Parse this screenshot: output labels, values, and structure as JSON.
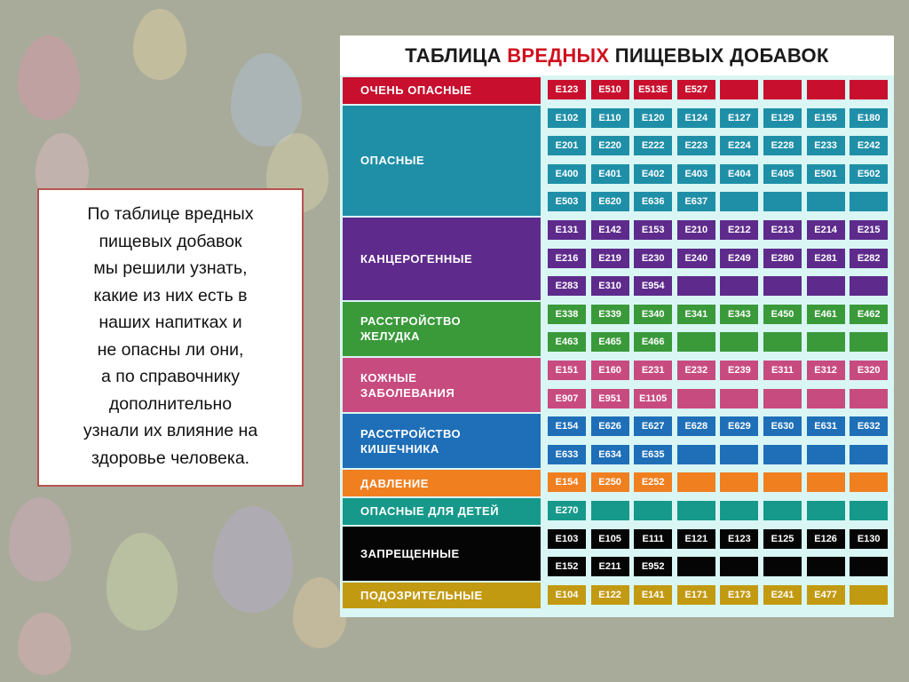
{
  "slide_text": "По таблице вредных\n пищевых добавок\nмы решили узнать,\nкакие из них есть в\nнаших напитках и\nне опасны ли они,\nа по справочнику\nдополнительно\nузнали их влияние на\nздоровье человека.",
  "table": {
    "title_part1": "ТАБЛИЦА ",
    "title_part2": "ВРЕДНЫХ",
    "title_part3": " ПИЩЕВЫХ ДОБАВОК",
    "groups": [
      {
        "label": "ОЧЕНЬ ОПАСНЫЕ",
        "color": "#c8102e",
        "rows": [
          [
            "E123",
            "E510",
            "E513E",
            "E527",
            "",
            "",
            "",
            ""
          ]
        ]
      },
      {
        "label": "ОПАСНЫЕ",
        "color": "#1f8fa8",
        "rows": [
          [
            "E102",
            "E110",
            "E120",
            "E124",
            "E127",
            "E129",
            "E155",
            "E180"
          ],
          [
            "E201",
            "E220",
            "E222",
            "E223",
            "E224",
            "E228",
            "E233",
            "E242"
          ],
          [
            "E400",
            "E401",
            "E402",
            "E403",
            "E404",
            "E405",
            "E501",
            "E502"
          ],
          [
            "E503",
            "E620",
            "E636",
            "E637",
            "",
            "",
            "",
            ""
          ]
        ]
      },
      {
        "label": "КАНЦЕРОГЕННЫЕ",
        "color": "#5e2b8c",
        "rows": [
          [
            "E131",
            "E142",
            "E153",
            "E210",
            "E212",
            "E213",
            "E214",
            "E215"
          ],
          [
            "E216",
            "E219",
            "E230",
            "E240",
            "E249",
            "E280",
            "E281",
            "E282"
          ],
          [
            "E283",
            "E310",
            "E954",
            "",
            "",
            "",
            "",
            ""
          ]
        ]
      },
      {
        "label": "РАССТРОЙСТВО\nЖЕЛУДКА",
        "color": "#3a9a3a",
        "rows": [
          [
            "E338",
            "E339",
            "E340",
            "E341",
            "E343",
            "E450",
            "E461",
            "E462"
          ],
          [
            "E463",
            "E465",
            "E466",
            "",
            "",
            "",
            "",
            ""
          ]
        ]
      },
      {
        "label": "КОЖНЫЕ\nЗАБОЛЕВАНИЯ",
        "color": "#c84b80",
        "rows": [
          [
            "E151",
            "E160",
            "E231",
            "E232",
            "E239",
            "E311",
            "E312",
            "E320"
          ],
          [
            "E907",
            "E951",
            "E1105",
            "",
            "",
            "",
            "",
            ""
          ]
        ]
      },
      {
        "label": "РАССТРОЙСТВО\nКИШЕЧНИКА",
        "color": "#1e6fb8",
        "rows": [
          [
            "E154",
            "E626",
            "E627",
            "E628",
            "E629",
            "E630",
            "E631",
            "E632"
          ],
          [
            "E633",
            "E634",
            "E635",
            "",
            "",
            "",
            "",
            ""
          ]
        ]
      },
      {
        "label": "ДАВЛЕНИЕ",
        "color": "#f07f20",
        "rows": [
          [
            "E154",
            "E250",
            "E252",
            "",
            "",
            "",
            "",
            ""
          ]
        ]
      },
      {
        "label": "ОПАСНЫЕ ДЛЯ ДЕТЕЙ",
        "color": "#16998a",
        "rows": [
          [
            "E270",
            "",
            "",
            "",
            "",
            "",
            "",
            ""
          ]
        ]
      },
      {
        "label": "ЗАПРЕЩЕННЫЕ",
        "color": "#050505",
        "rows": [
          [
            "E103",
            "E105",
            "E111",
            "E121",
            "E123",
            "E125",
            "E126",
            "E130"
          ],
          [
            "E152",
            "E211",
            "E952",
            "",
            "",
            "",
            "",
            ""
          ]
        ]
      },
      {
        "label": "ПОДОЗРИТЕЛЬНЫЕ",
        "color": "#c29a12",
        "rows": [
          [
            "E104",
            "E122",
            "E141",
            "E171",
            "E173",
            "E241",
            "E477",
            ""
          ]
        ]
      }
    ]
  }
}
